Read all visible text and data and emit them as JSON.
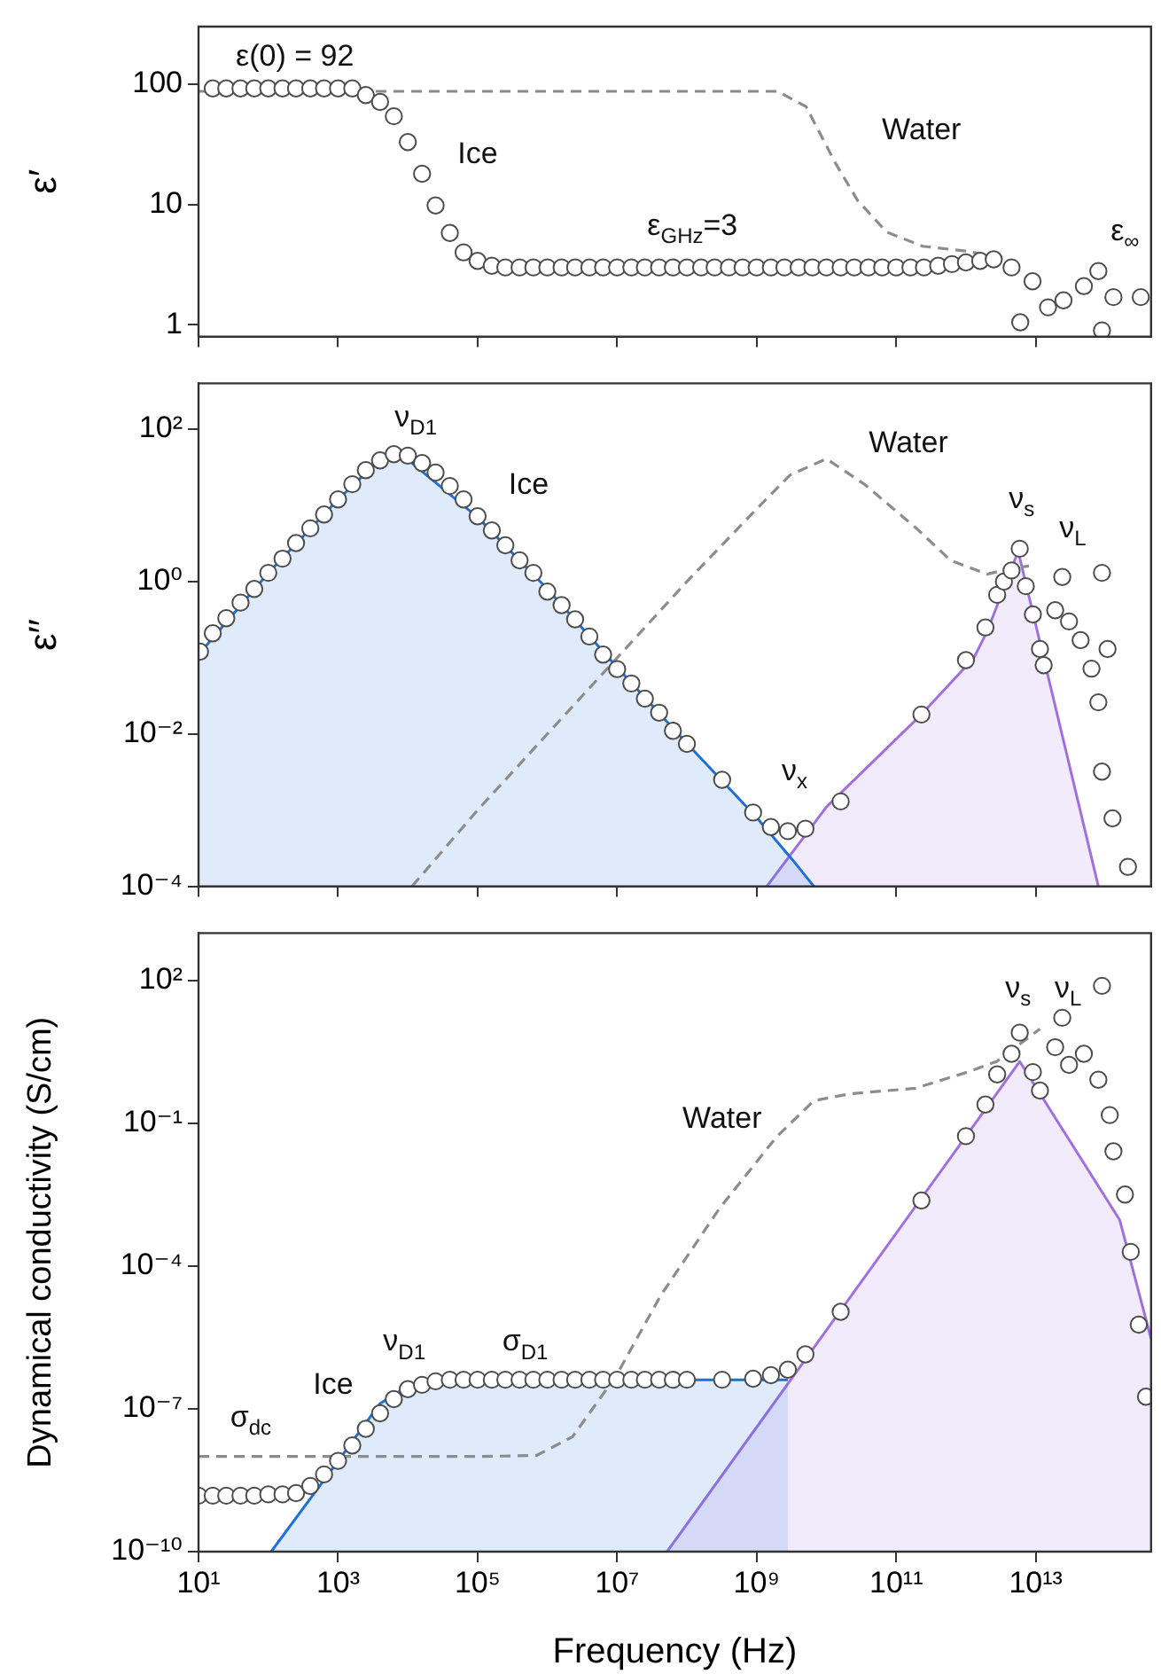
{
  "chart_data": [
    {
      "type": "scatter",
      "ylabel": "ε′",
      "log": "xy",
      "xlim": [
        10,
        450000000000000
      ],
      "ylim": [
        0.8,
        300
      ],
      "xticks": [
        {
          "value": 10,
          "label": null
        },
        {
          "value": 1000,
          "label": null
        },
        {
          "value": 100000,
          "label": null
        },
        {
          "value": 10000000,
          "label": null
        },
        {
          "value": 1000000000,
          "label": null
        },
        {
          "value": 100000000000,
          "label": null
        },
        {
          "value": 10000000000000,
          "label": null
        }
      ],
      "yticks": [
        1,
        10,
        100
      ],
      "tick_labels": "y",
      "series": [
        {
          "type": "line",
          "color": "#8c8c8c",
          "line_style": "dashed",
          "marker": "none",
          "x": [
            10,
            1000.0,
            100000.0,
            10000000.0,
            2000000000.0,
            5100000000.0,
            13500000000.0,
            28000000000.0,
            73000000000.0,
            240000000000.0,
            1000000000000.0,
            2700000000000.0
          ],
          "values": [
            87,
            87,
            87,
            87,
            87,
            65,
            22,
            10.8,
            5.9,
            4.5,
            4.1,
            3.7
          ]
        },
        {
          "color": "#4d4d4d",
          "marker": "circle",
          "x": [
            16,
            25,
            40,
            63,
            100,
            160,
            250,
            400,
            630,
            1000,
            1600,
            2500,
            4000,
            6300,
            10000.0,
            16000.0,
            25000.0,
            40000.0,
            63000.0,
            100000.0,
            160000.0,
            250000.0,
            400000.0,
            630000.0,
            1000000.0,
            1600000.0,
            2500000.0,
            4000000.0,
            6300000.0,
            10000000.0,
            16000000.0,
            25000000.0,
            40000000.0,
            63000000.0,
            100000000.0,
            160000000.0,
            250000000.0,
            400000000.0,
            630000000.0,
            1000000000.0,
            1600000000.0,
            2500000000.0,
            4000000000.0,
            6300000000.0,
            10000000000.0,
            16000000000.0,
            25000000000.0,
            40000000000.0,
            63000000000.0,
            100000000000.0,
            160000000000.0,
            250000000000.0,
            400000000000.0,
            630000000000.0,
            1000000000000.0,
            1600000000000.0,
            2500000000000.0,
            4500000000000.0,
            6000000000000.0,
            9000000000000.0,
            15000000000000.0,
            25000000000000.0,
            49000000000000.0,
            79000000000000.0,
            89000000000000.0,
            130000000000000.0,
            320000000000000.0
          ],
          "values": [
            92,
            92,
            92,
            92,
            92,
            92,
            92,
            92,
            92,
            92,
            92,
            81,
            71,
            54,
            33,
            18,
            9.8,
            5.8,
            4.0,
            3.4,
            3.1,
            3,
            3,
            3,
            3,
            3,
            3,
            3,
            3,
            3,
            3,
            3,
            3,
            3,
            3,
            3,
            3,
            3,
            3,
            3,
            3,
            3,
            3,
            3,
            3,
            3,
            3,
            3,
            3,
            3,
            3,
            3,
            3.1,
            3.2,
            3.3,
            3.4,
            3.5,
            3.0,
            1.05,
            2.3,
            1.4,
            1.6,
            2.1,
            2.8,
            0.9,
            1.7,
            1.7
          ]
        }
      ],
      "annotations": [
        "ε(0) = 92",
        "Ice",
        "Water",
        "ε$_{GHz}$=3",
        "ε$_{∞}$"
      ]
    },
    {
      "type": "scatter",
      "ylabel": "ε′′",
      "log": "xy",
      "xlim": [
        10,
        450000000000000
      ],
      "ylim": [
        0.0001,
        400
      ],
      "xticks": [
        {
          "value": 10,
          "label": null
        },
        {
          "value": 1000,
          "label": null
        },
        {
          "value": 100000,
          "label": null
        },
        {
          "value": 10000000,
          "label": null
        },
        {
          "value": 1000000000,
          "label": null
        },
        {
          "value": 100000000000,
          "label": null
        },
        {
          "value": 10000000000000,
          "label": null
        }
      ],
      "yticks": [
        {
          "value": 0.0001,
          "label": "10⁻⁴"
        },
        {
          "value": 0.01,
          "label": "10⁻²"
        },
        {
          "value": 1,
          "label": "10⁰"
        },
        {
          "value": 100,
          "label": "10²"
        }
      ],
      "tick_labels": "y",
      "series": [
        {
          "type": "area",
          "color": "#1f6fdb",
          "marker": "none",
          "x": [
            10,
            100,
            1000,
            4000,
            6300,
            10000.0,
            100000.0,
            1000000.0,
            10000000.0,
            100000000.0,
            1000000000.0,
            3300000000.0,
            6600000000.0
          ],
          "values": [
            0.11,
            1.3,
            12,
            40,
            45,
            40,
            7,
            0.8,
            0.075,
            0.0075,
            0.0008,
            0.00022,
            0.0001
          ]
        },
        {
          "type": "area",
          "color": "#a070e0",
          "marker": "none",
          "x": [
            1400000000.0,
            10000000000.0,
            230000000000.0,
            1300000000000.0,
            2000000000000.0,
            5600000000000.0,
            79000000000000.0
          ],
          "values": [
            0.0001,
            0.0011,
            0.018,
            0.1,
            0.22,
            2.5,
            0.0001
          ]
        },
        {
          "type": "line",
          "color": "#8c8c8c",
          "line_style": "dashed",
          "marker": "none",
          "x": [
            11500.0,
            100000.0,
            1000000.0,
            10000000.0,
            100000000.0,
            1000000000.0,
            3000000000.0,
            10000000000.0,
            35000000000.0,
            200000000000.0,
            600000000000.0,
            2000000000000.0,
            4500000000000.0,
            8000000000000.0
          ],
          "values": [
            0.0001,
            0.001,
            0.01,
            0.1,
            1,
            9,
            25,
            41,
            19,
            4.9,
            1.9,
            1.25,
            1.5,
            1.6
          ]
        },
        {
          "color": "#4d4d4d",
          "marker": "circle",
          "x": [
            10.5,
            16,
            25,
            40,
            63,
            100,
            160,
            250,
            400,
            630,
            1000,
            1600,
            2500,
            4000,
            6300,
            10000.0,
            16000.0,
            25000.0,
            40000.0,
            63000.0,
            100000.0,
            160000.0,
            250000.0,
            400000.0,
            630000.0,
            1000000.0,
            1600000.0,
            2500000.0,
            4000000.0,
            6300000.0,
            10000000.0,
            16000000.0,
            25000000.0,
            40000000.0,
            63000000.0,
            100000000.0,
            320000000.0,
            890000000.0,
            1600000000.0,
            2800000000.0,
            5000000000.0,
            16000000000.0,
            230000000000.0,
            1000000000000.0,
            1900000000000.0,
            2800000000000.0,
            3500000000000.0,
            4500000000000.0,
            5900000000000.0,
            7200000000000.0,
            9100000000000.0,
            11500000000000.0,
            13000000000000.0,
            19000000000000.0,
            24000000000000.0,
            30000000000000.0,
            44000000000000.0,
            63000000000000.0,
            79000000000000.0,
            89000000000000.0,
            107000000000000.0,
            89000000000000.0,
            126000000000000.0,
            210000000000000.0
          ],
          "values": [
            0.12,
            0.21,
            0.33,
            0.53,
            0.8,
            1.3,
            2.0,
            3.2,
            5.0,
            7.6,
            12,
            19,
            29,
            39,
            47,
            45,
            36,
            27,
            18,
            12,
            7.2,
            4.7,
            3.0,
            1.9,
            1.3,
            0.74,
            0.49,
            0.32,
            0.19,
            0.11,
            0.071,
            0.046,
            0.029,
            0.019,
            0.011,
            0.0074,
            0.0025,
            0.00093,
            0.0006,
            0.00053,
            0.00057,
            0.0013,
            0.018,
            0.093,
            0.25,
            0.67,
            1.0,
            1.4,
            2.7,
            0.87,
            0.37,
            0.13,
            0.08,
            0.42,
            1.15,
            0.3,
            0.17,
            0.072,
            0.026,
            1.3,
            0.13,
            0.0032,
            0.00078,
            0.00018
          ]
        }
      ],
      "annotations": [
        "ν$_{D1}$",
        "Ice",
        "Water",
        "ν$_{s}$",
        "ν$_{L}$",
        "ν$_{x}$"
      ]
    },
    {
      "type": "scatter",
      "ylabel": "Dynamical conductivity (S/cm)",
      "xlabel": "Frequency (Hz)",
      "log": "xy",
      "xlim": [
        10,
        450000000000000
      ],
      "ylim": [
        1e-10,
        1000
      ],
      "xticks": [
        {
          "value": 10,
          "label": "10¹"
        },
        {
          "value": 1000,
          "label": "10³"
        },
        {
          "value": 100000,
          "label": "10⁵"
        },
        {
          "value": 10000000,
          "label": "10⁷"
        },
        {
          "value": 1000000000,
          "label": "10⁹"
        },
        {
          "value": 100000000000,
          "label": "10¹¹"
        },
        {
          "value": 10000000000000,
          "label": "10¹³"
        }
      ],
      "yticks": [
        {
          "value": 1e-10,
          "label": "10⁻¹⁰"
        },
        {
          "value": 1e-07,
          "label": "10⁻⁷"
        },
        {
          "value": 0.0001,
          "label": "10⁻⁴"
        },
        {
          "value": 0.1,
          "label": "10⁻¹"
        },
        {
          "value": 100,
          "label": "10²"
        }
      ],
      "series": [
        {
          "type": "area",
          "color": "#1f6fdb",
          "marker": "none",
          "x": [
            110,
            1000,
            4000,
            10000.0,
            30000.0,
            2800000000.0
          ],
          "values": [
            1e-10,
            8e-09,
            1.3e-07,
            3e-07,
            4e-07,
            4.1e-07
          ]
        },
        {
          "type": "area",
          "color": "#a070e0",
          "marker": "none",
          "x": [
            52000000.0,
            5900000000000.0,
            160000000000000.0,
            450000000000000.0
          ],
          "values": [
            1e-10,
            2.0,
            0.00093,
            3e-06
          ]
        },
        {
          "type": "line",
          "color": "#8c8c8c",
          "line_style": "dashed",
          "marker": "none",
          "x": [
            10,
            1000.0,
            100000.0,
            700000.0,
            2300000.0,
            9800000.0,
            42000000.0,
            290000000.0,
            1900000000.0,
            6600000000.0,
            22000000000.0,
            190000000000.0,
            1050000000000.0,
            2750000000000.0,
            11500000000000.0
          ],
          "values": [
            1e-08,
            1e-08,
            1e-08,
            1.05e-08,
            2.6e-08,
            5.1e-07,
            2.4e-05,
            0.0016,
            0.051,
            0.3,
            0.42,
            0.55,
            1.2,
            2.0,
            9.7
          ]
        },
        {
          "color": "#4d4d4d",
          "marker": "circle",
          "x": [
            10,
            16,
            25,
            40,
            63,
            100,
            160,
            250,
            400,
            630,
            1000,
            1600,
            2500,
            4000,
            6300,
            10000.0,
            16000.0,
            25000.0,
            40000.0,
            63000.0,
            100000.0,
            160000.0,
            250000.0,
            400000.0,
            630000.0,
            1000000.0,
            1600000.0,
            2500000.0,
            4000000.0,
            6300000.0,
            10000000.0,
            16000000.0,
            25000000.0,
            40000000.0,
            63000000.0,
            100000000.0,
            320000000.0,
            890000000.0,
            1600000000.0,
            2800000000.0,
            5000000000.0,
            16000000000.0,
            230000000000.0,
            1000000000000.0,
            1900000000000.0,
            2800000000000.0,
            4500000000000.0,
            5900000000000.0,
            9100000000000.0,
            11500000000000.0,
            19000000000000.0,
            24000000000000.0,
            30000000000000.0,
            49000000000000.0,
            79000000000000.0,
            89000000000000.0,
            115000000000000.0,
            130000000000000.0,
            190000000000000.0,
            230000000000000.0,
            300000000000000.0,
            380000000000000.0
          ],
          "values": [
            1.5e-09,
            1.5e-09,
            1.5e-09,
            1.5e-09,
            1.5e-09,
            1.6e-09,
            1.6e-09,
            1.7e-09,
            2.4e-09,
            4.2e-09,
            8.1e-09,
            1.7e-08,
            3.8e-08,
            8.1e-08,
            1.6e-07,
            2.6e-07,
            3.2e-07,
            3.8e-07,
            4.1e-07,
            4.1e-07,
            4.1e-07,
            4.1e-07,
            4.1e-07,
            4.1e-07,
            4.1e-07,
            4.1e-07,
            4.1e-07,
            4.1e-07,
            4.1e-07,
            4.1e-07,
            4.1e-07,
            4.1e-07,
            4.1e-07,
            4.1e-07,
            4.1e-07,
            4.1e-07,
            4.1e-07,
            4.3e-07,
            5.1e-07,
            6.7e-07,
            1.4e-06,
            1.1e-05,
            0.0024,
            0.054,
            0.25,
            1.07,
            2.9,
            8.1,
            1.2,
            0.49,
            4,
            16.6,
            1.7,
            2.9,
            0.83,
            78,
            0.15,
            0.026,
            0.0032,
            0.0002,
            5.9e-06,
            1.8e-07
          ]
        }
      ],
      "annotations": [
        "ν$_{s}$",
        "ν$_{L}$",
        "Water",
        "ν$_{D1}$",
        "σ$_{D1}$",
        "Ice",
        "σ$_{dc}$"
      ]
    }
  ]
}
